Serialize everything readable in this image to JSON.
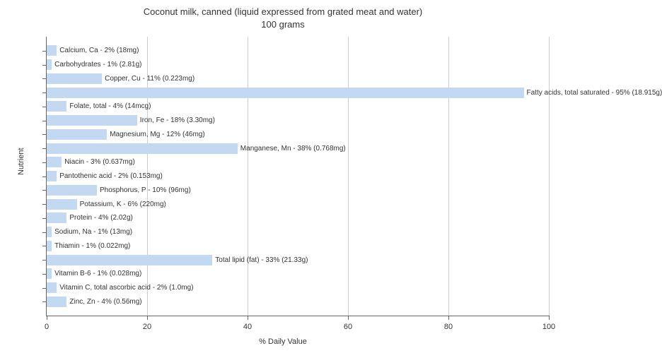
{
  "chart": {
    "type": "bar",
    "title_line1": "Coconut milk, canned (liquid expressed from grated meat and water)",
    "title_line2": "100 grams",
    "title_fontsize": 13,
    "x_axis_label": "% Daily Value",
    "y_axis_label": "Nutrient",
    "label_fontsize": 11,
    "xlim": [
      0,
      100
    ],
    "xtick_step": 20,
    "xticks": [
      0,
      20,
      40,
      60,
      80,
      100
    ],
    "bar_color": "#c3d9f1",
    "background_color": "#ffffff",
    "grid_color": "#cccccc",
    "axis_color": "#666666",
    "text_color": "#333333",
    "bar_label_fontsize": 10,
    "bars": [
      {
        "label": "Calcium, Ca - 2% (18mg)",
        "value": 2
      },
      {
        "label": "Carbohydrates - 1% (2.81g)",
        "value": 1
      },
      {
        "label": "Copper, Cu - 11% (0.223mg)",
        "value": 11
      },
      {
        "label": "Fatty acids, total saturated - 95% (18.915g)",
        "value": 95
      },
      {
        "label": "Folate, total - 4% (14mcg)",
        "value": 4
      },
      {
        "label": "Iron, Fe - 18% (3.30mg)",
        "value": 18
      },
      {
        "label": "Magnesium, Mg - 12% (46mg)",
        "value": 12
      },
      {
        "label": "Manganese, Mn - 38% (0.768mg)",
        "value": 38
      },
      {
        "label": "Niacin - 3% (0.637mg)",
        "value": 3
      },
      {
        "label": "Pantothenic acid - 2% (0.153mg)",
        "value": 2
      },
      {
        "label": "Phosphorus, P - 10% (96mg)",
        "value": 10
      },
      {
        "label": "Potassium, K - 6% (220mg)",
        "value": 6
      },
      {
        "label": "Protein - 4% (2.02g)",
        "value": 4
      },
      {
        "label": "Sodium, Na - 1% (13mg)",
        "value": 1
      },
      {
        "label": "Thiamin - 1% (0.022mg)",
        "value": 1
      },
      {
        "label": "Total lipid (fat) - 33% (21.33g)",
        "value": 33
      },
      {
        "label": "Vitamin B-6 - 1% (0.028mg)",
        "value": 1
      },
      {
        "label": "Vitamin C, total ascorbic acid - 2% (1.0mg)",
        "value": 2
      },
      {
        "label": "Zinc, Zn - 4% (0.56mg)",
        "value": 4
      }
    ]
  }
}
